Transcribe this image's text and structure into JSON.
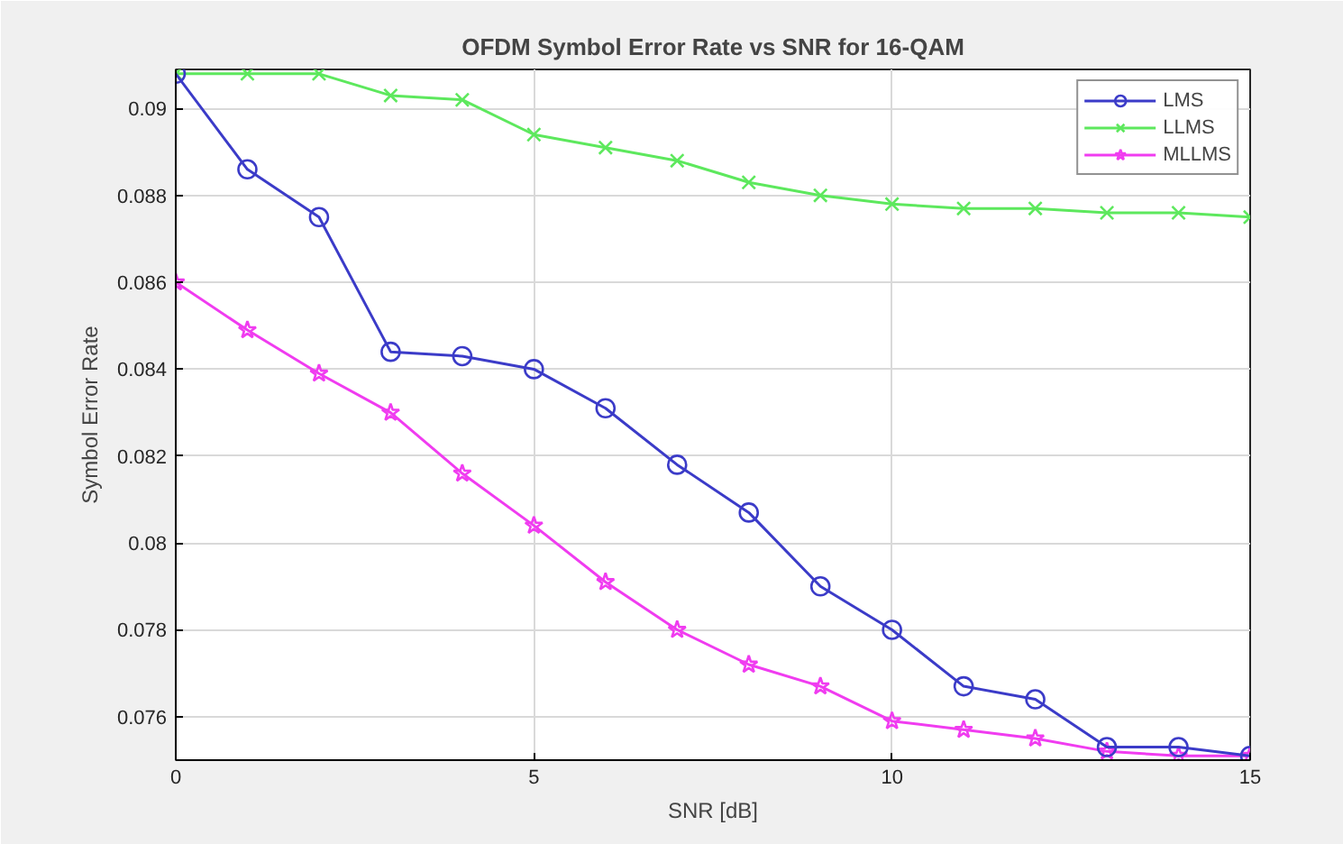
{
  "chart_data": {
    "type": "line",
    "title": "OFDM Symbol Error Rate vs SNR for 16-QAM",
    "xlabel": "SNR [dB]",
    "ylabel": "Symbol Error Rate",
    "x": [
      0,
      1,
      2,
      3,
      4,
      5,
      6,
      7,
      8,
      9,
      10,
      11,
      12,
      13,
      14,
      15
    ],
    "series": [
      {
        "name": "LMS",
        "color": "#3b3bc8",
        "marker": "circle",
        "values": [
          0.0908,
          0.0886,
          0.0875,
          0.0844,
          0.0843,
          0.084,
          0.0831,
          0.0818,
          0.0807,
          0.079,
          0.078,
          0.0767,
          0.0764,
          0.0753,
          0.0753,
          0.0751
        ]
      },
      {
        "name": "LLMS",
        "color": "#5de85d",
        "marker": "cross",
        "values": [
          0.0908,
          0.0908,
          0.0908,
          0.0903,
          0.0902,
          0.0894,
          0.0891,
          0.0888,
          0.0883,
          0.088,
          0.0878,
          0.0877,
          0.0877,
          0.0876,
          0.0876,
          0.0875
        ]
      },
      {
        "name": "MLLMS",
        "color": "#f03cf0",
        "marker": "star",
        "values": [
          0.086,
          0.0849,
          0.0839,
          0.083,
          0.0816,
          0.0804,
          0.0791,
          0.078,
          0.0772,
          0.0767,
          0.0759,
          0.0757,
          0.0755,
          0.0752,
          0.0751,
          0.0751
        ]
      }
    ],
    "xlim": [
      0,
      15
    ],
    "xticks": [
      0,
      5,
      10,
      15
    ],
    "ylim": [
      0.075,
      0.0909
    ],
    "yticks": [
      0.076,
      0.078,
      0.08,
      0.082,
      0.084,
      0.086,
      0.088,
      0.09
    ],
    "grid": true,
    "legend": "top right",
    "line_style": "solid"
  }
}
